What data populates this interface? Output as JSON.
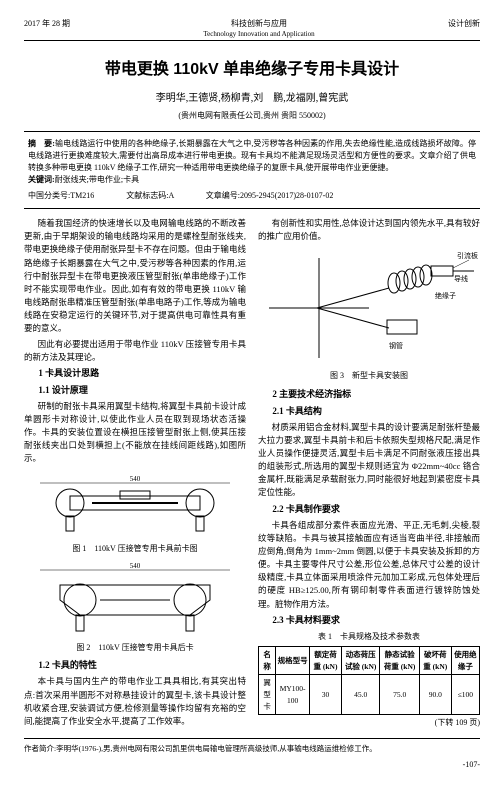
{
  "header": {
    "left": "2017 年 28 期",
    "center_cn": "科技创新与应用",
    "center_en": "Technology Innovation and Application",
    "right": "设计创新"
  },
  "title": "带电更换 110kV 单串绝缘子专用卡具设计",
  "authors": "李明华,王德贤,杨柳青,刘　鹏,龙福刚,曾宪武",
  "affiliation": "(贵州电网有限责任公司,贵州 贵阳 550002)",
  "abstract": {
    "label_abs": "摘　要:",
    "abs_text": "输电线路运行中使用的各种绝缘子,长期暴露在大气之中,受污秽等各种因素的作用,失去绝缘性能,造成线路损坏故障。停电线路进行更换难度较大,需要付出高昂成本进行带电更换。现有卡具均不能满足现场灵活型和方便性的要求。文章介绍了供电转换多种带电更换 110kV 绝缘子工作,研究一种适用带电更换绝缘子的复原卡具,使开展带电作业更便捷。",
    "label_kw": "关键词:",
    "kw_text": "耐张线夹;带电作业;卡具",
    "classline": "中国分类号:TM216　　　　文献标志码:A　　　　文章编号:2095-2945(2017)28-0107-02"
  },
  "left_col": {
    "p1": "随着我国经济的快速增长以及电网输电线路的不断改善更新,由于早期架设的输电线路均采用的是螺栓型耐张线夹,带电更换绝缘子使用耐张异型卡不存在问题。但由于输电线路绝缘子长期暴露在大气之中,受污秽等各种因素的作用,运行中耐张异型卡在带电更换液压管型耐张(单串绝缘子)工作时不能实现带电作业。因此,如有有效的带电更换 110kV 输电线路耐张串精准压管型耐张(单串电路子)工作,等成为输电线路在安稳定运行的关键环节,对于提高供电可靠性具有重要的意义。",
    "p2": "因此有必要提出适用于带电作业 110kV 压接管专用卡具的新方法及其理论。",
    "h1": "1 卡具设计思路",
    "h11": "1.1 设计原理",
    "p3": "研制的耐张卡具采用翼型卡结构,将翼型卡具前卡设计成单圆形卡对称设计,以使此作业人员在取到现场状态活操作。卡具的安装位置设在横担压接管型耐张上侧,使其压接耐张线夹出口处到横担上(不能放在挂线间距线路),如图所示。",
    "fig1_cap": "图 1　110kV 压接管专用卡具前卡图",
    "fig2_cap": "图 2　110kV 压接管专用卡具后卡",
    "h12": "1.2 卡具的特性",
    "p4": "本卡具与国内生产的带电作业工具具相比,有其突出特点:首次采用半圆形不对称悬挂设计的翼型卡,该卡具设计整机收紧合理,安装调试方便,检修测量等操作均留有充裕的空间,能提高了作业安全水平,提高了工作效率。"
  },
  "right_col": {
    "p1": "有创新性和实用性,总体设计达到国内领先水平,具有较好的推广应用价值。",
    "fig3_labels": {
      "a": "引流板",
      "b": "绝缘子",
      "c": "导线",
      "d": "钢管"
    },
    "fig3_cap": "图 3　新型卡具安装图",
    "h2": "2 主要技术经济指标",
    "h21": "2.1 卡具结构",
    "p2": "材质采用铝合金材料,翼型卡具的设计要满足耐张杆垫最大拉力要求,翼型卡具前卡和后卡依照失型规格尺配,满足作业人员操作便捷灵活,翼型卡后卡满足不同耐张液压接出具的组装形式,所选用的翼型卡规则适宜为 Φ22mm~40cc 铬合金属杆,既能满足承载耐张力,同时能很好地起到紧密度卡具定位性能。",
    "h22": "2.2 卡具制作要求",
    "p3": "卡具各组成部分素件表面应光滑、平正,无毛刺,尖棱,裂纹等缺陷。卡具与被其接触面应有适当弯曲半径,非接触而应倒角,倒角为 1mm~2mm 倒圆,以便于卡具安装及拆卸的方便。卡具主要零件尺寸公差,形位公差,总体尺寸公差的设计级精度,卡具立体面采用喷涂件元加加工彩成,元包体处理后的硬度 HB≥125.00,所有钢印制零件表面进行镀锌防蚀处理。脏物作用方法。",
    "h23": "2.3 卡具材料要求",
    "tab1_cap": "表 1　卡具规格及技术参数表",
    "table": {
      "headers": [
        "名称",
        "规格型号",
        "额定荷重 (kN)",
        "动态荷压试验 (kN)",
        "静态试验 荷重 (kN)",
        "破坏荷重 (kN)",
        "使用绝缘子"
      ],
      "row": [
        "翼型卡",
        "MY100-100",
        "30",
        "45.0",
        "75.0",
        "90.0",
        "≤100"
      ]
    },
    "cont": "(下转 109 页)"
  },
  "footer": "作者简介:李明华(1976-),男,贵州电网有限公司凯里供电局输电管理所高级技师,从事输电线路运维检修工作。",
  "pagenum": "-107-"
}
